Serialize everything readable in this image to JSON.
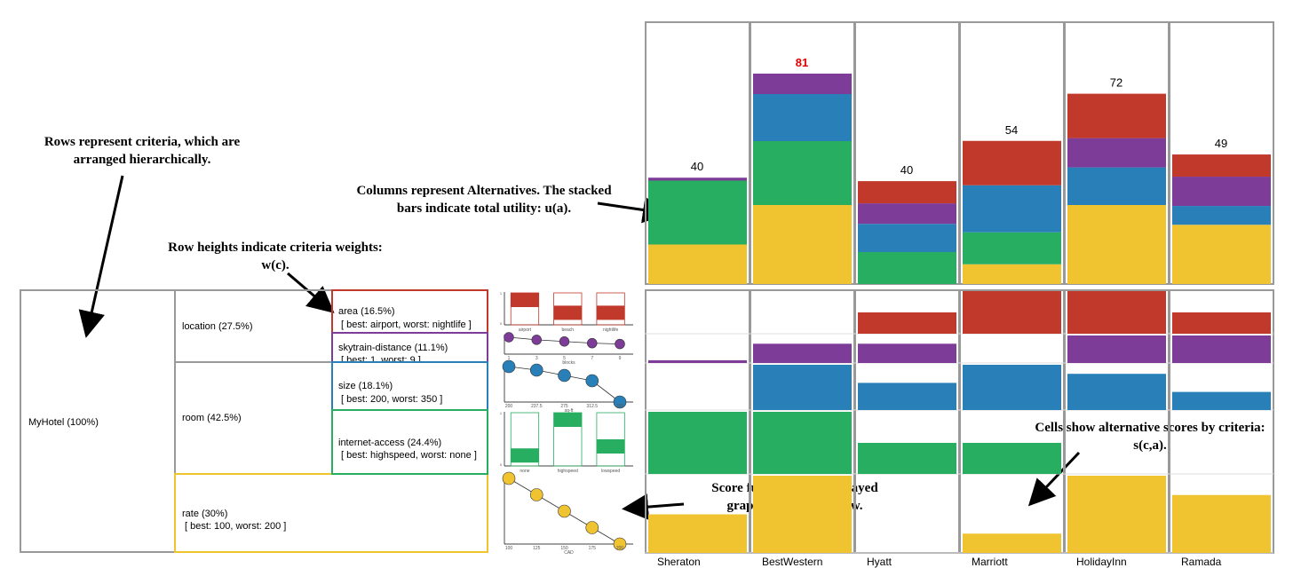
{
  "annotations": {
    "rows": "Rows represent criteria, which are arranged hierarchically.",
    "columns": "Columns represent Alternatives. The stacked bars indicate total utility: u(a).",
    "row_heights": "Row heights indicate criteria weights: w(c).",
    "cells": "Cells show alternative scores by criteria: s(c,a).",
    "score_functions": "Score functions are displayed graphically in each row."
  },
  "tree": {
    "root": "MyHotel (100%)",
    "location": "location (27.5%)",
    "room": "room (42.5%)",
    "rate": "rate (30%)",
    "rate_range": "[ best: 100, worst: 200 ]",
    "area": "area (16.5%)",
    "area_range": "[ best: airport, worst: nightlife ]",
    "skytrain": "skytrain-distance (11.1%)",
    "skytrain_range": "[ best: 1, worst: 9 ]",
    "size": "size (18.1%)",
    "size_range": "[ best: 200, worst: 350 ]",
    "internet": "internet-access (24.4%)",
    "internet_range": "[ best: highspeed, worst: none ]"
  },
  "colors": {
    "area": "#c0392b",
    "skytrain": "#7d3c98",
    "size": "#2980b9",
    "internet": "#27ae60",
    "rate": "#f0c330",
    "highlight": "#e00000"
  },
  "score_functions": {
    "area": {
      "categories": [
        "airport",
        "beach",
        "nightlife"
      ],
      "values": [
        1,
        0.6,
        0.6
      ]
    },
    "skytrain": {
      "x": [
        1,
        3,
        5,
        7,
        9
      ],
      "values": [
        1,
        0.85,
        0.75,
        0.65,
        0.6
      ],
      "xlabel": "blocks"
    },
    "size": {
      "x": [
        "200",
        "237.5",
        "275",
        "312.5",
        "350"
      ],
      "values": [
        1,
        0.9,
        0.75,
        0.6,
        0
      ],
      "xlabel": "sq-ft"
    },
    "internet": {
      "categories": [
        "none",
        "highspeed",
        "lowspeed"
      ],
      "values": [
        0.33,
        1,
        0.5
      ]
    },
    "rate": {
      "x": [
        "100",
        "125",
        "150",
        "175",
        "200"
      ],
      "values": [
        1,
        0.75,
        0.5,
        0.25,
        0
      ],
      "xlabel": "CAD"
    }
  },
  "chart_data": {
    "type": "bar",
    "categories": [
      "Sheraton",
      "BestWestern",
      "Hyatt",
      "Marriott",
      "HolidayInn",
      "Ramada"
    ],
    "totals": [
      "40",
      "81",
      "40",
      "54",
      "72",
      "49"
    ],
    "highlight_index": 1,
    "series": [
      {
        "name": "area",
        "values": [
          0,
          0,
          0.5,
          1,
          1,
          0.5
        ]
      },
      {
        "name": "skytrain-distance",
        "values": [
          0.1,
          0.7,
          0.7,
          0,
          1,
          1
        ]
      },
      {
        "name": "size",
        "values": [
          0,
          1,
          0.6,
          1,
          0.8,
          0.4
        ]
      },
      {
        "name": "internet-access",
        "values": [
          1,
          1,
          0.5,
          0.5,
          0,
          0
        ]
      },
      {
        "name": "rate",
        "values": [
          0.5,
          1,
          0,
          0.25,
          1,
          0.75
        ]
      }
    ],
    "ylim": [
      0,
      100
    ]
  }
}
